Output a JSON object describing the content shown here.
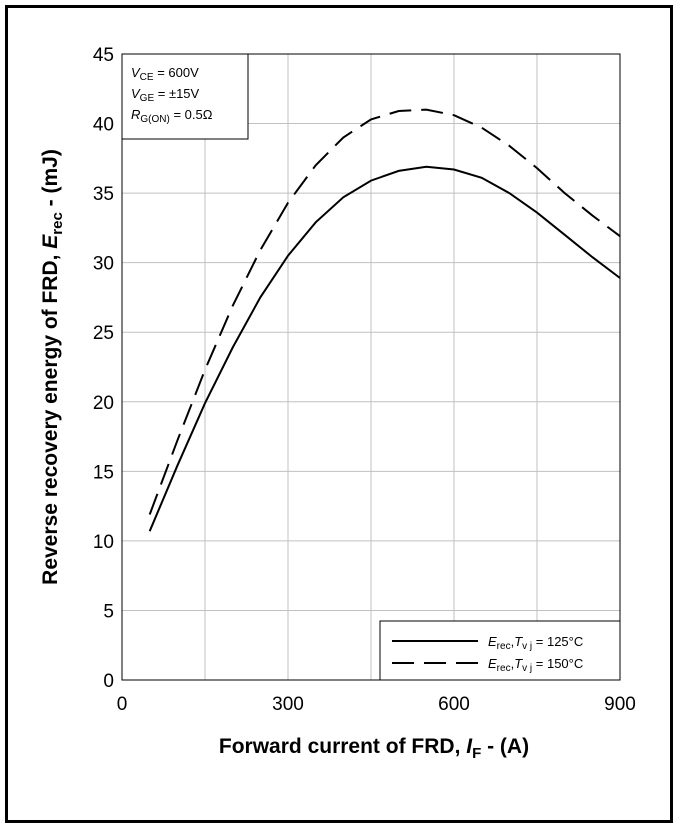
{
  "chart_data": {
    "type": "line",
    "xlabel": "Forward current of FRD, I_F - (A)",
    "xlabel_parts": {
      "main": "Forward current of FRD, ",
      "symbol": "I",
      "sub": "F",
      "unit": " - (A)"
    },
    "ylabel": "Reverse recovery energy of FRD, E_rec - (mJ)",
    "ylabel_parts": {
      "main": "Reverse recovery energy of FRD, ",
      "symbol": "E",
      "sub": "rec",
      "unit": " - (mJ)"
    },
    "xlim": [
      0,
      900
    ],
    "ylim": [
      0,
      45
    ],
    "x_ticks": [
      0,
      300,
      600,
      900
    ],
    "y_ticks": [
      0,
      5,
      10,
      15,
      20,
      25,
      30,
      35,
      40,
      45
    ],
    "x_gridlines": [
      0,
      150,
      300,
      450,
      600,
      750,
      900
    ],
    "grid": true,
    "legend_position": "bottom-right",
    "conditions": [
      {
        "symbol": "V",
        "sub": "CE",
        "value": " = 600V"
      },
      {
        "symbol": "V",
        "sub": "GE",
        "value": " = ±15V"
      },
      {
        "symbol": "R",
        "sub": "G(ON)",
        "value": " = 0.5Ω"
      }
    ],
    "series": [
      {
        "name": "E_rec, T_vj = 125°C",
        "legend": {
          "symbol": "E",
          "sub": "rec",
          "mid": ",",
          "tsymbol": "T",
          "tsub": "v j",
          "value": " = 125°C"
        },
        "style": "solid",
        "color": "#000000",
        "x": [
          50,
          100,
          150,
          200,
          250,
          300,
          350,
          400,
          450,
          500,
          550,
          600,
          650,
          700,
          750,
          800,
          850,
          900
        ],
        "y": [
          10.7,
          15.4,
          19.9,
          23.9,
          27.5,
          30.5,
          32.9,
          34.7,
          35.9,
          36.6,
          36.9,
          36.7,
          36.1,
          35.0,
          33.6,
          32.0,
          30.4,
          28.9
        ]
      },
      {
        "name": "E_rec, T_vj = 150°C",
        "legend": {
          "symbol": "E",
          "sub": "rec",
          "mid": ",",
          "tsymbol": "T",
          "tsub": "v j",
          "value": " = 150°C"
        },
        "style": "dashed",
        "color": "#000000",
        "x": [
          50,
          100,
          150,
          200,
          250,
          300,
          350,
          400,
          450,
          500,
          550,
          600,
          650,
          700,
          750,
          800,
          850,
          900
        ],
        "y": [
          11.9,
          17.2,
          22.3,
          26.9,
          30.9,
          34.3,
          37.0,
          39.0,
          40.3,
          40.9,
          41.0,
          40.6,
          39.7,
          38.4,
          36.8,
          35.0,
          33.4,
          31.9
        ]
      }
    ]
  }
}
